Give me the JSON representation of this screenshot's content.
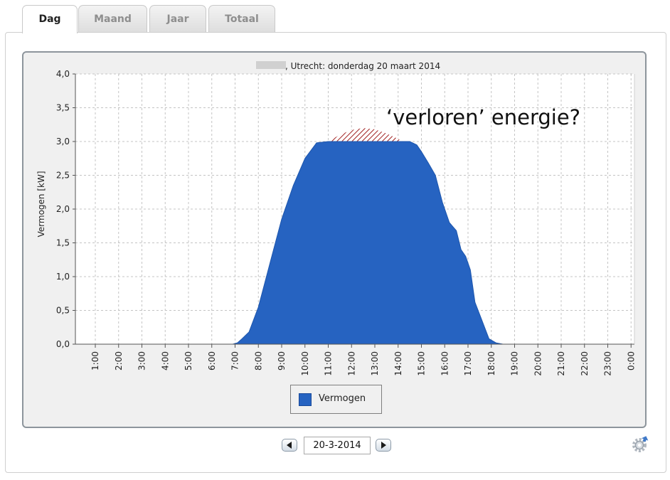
{
  "tabs": [
    {
      "label": "Dag",
      "active": true
    },
    {
      "label": "Maand",
      "active": false
    },
    {
      "label": "Jaar",
      "active": false
    },
    {
      "label": "Totaal",
      "active": false
    }
  ],
  "annotation": "‘verloren’ energie?",
  "date_nav": {
    "date_value": "20-3-2014",
    "prev_icon": "triangle-left-icon",
    "next_icon": "triangle-right-icon"
  },
  "settings_icon": "gear-icon",
  "chart_data": {
    "type": "area",
    "title": ", Utrecht: donderdag 20 maart 2014",
    "xlabel": "",
    "ylabel": "Vermogen [kW]",
    "ylim": [
      0,
      4
    ],
    "xlim": [
      0,
      24
    ],
    "grid": true,
    "legend_placement": "bottom-center",
    "y_ticks": [
      "0,0",
      "0,5",
      "1,0",
      "1,5",
      "2,0",
      "2,5",
      "3,0",
      "3,5",
      "4,0"
    ],
    "x_ticks": [
      "1:00",
      "2:00",
      "3:00",
      "4:00",
      "5:00",
      "6:00",
      "7:00",
      "8:00",
      "9:00",
      "10:00",
      "11:00",
      "12:00",
      "13:00",
      "14:00",
      "15:00",
      "16:00",
      "17:00",
      "18:00",
      "19:00",
      "20:00",
      "21:00",
      "22:00",
      "23:00",
      "0:00"
    ],
    "series": [
      {
        "name": "Vermogen",
        "color": "#2663c1",
        "x": [
          0,
          6.9,
          7.1,
          7.3,
          7.6,
          8.0,
          8.5,
          9.0,
          9.5,
          10.0,
          10.5,
          11.0,
          11.5,
          12.0,
          12.5,
          13.0,
          13.5,
          14.0,
          14.5,
          14.8,
          15.0,
          15.3,
          15.6,
          15.9,
          16.2,
          16.5,
          16.7,
          16.9,
          17.1,
          17.3,
          17.6,
          17.9,
          18.2,
          18.5,
          18.8,
          19.0,
          24
        ],
        "y": [
          0,
          0,
          0.02,
          0.08,
          0.18,
          0.55,
          1.2,
          1.85,
          2.35,
          2.75,
          2.98,
          3.0,
          3.0,
          3.0,
          3.0,
          3.0,
          3.0,
          3.0,
          3.0,
          2.95,
          2.85,
          2.68,
          2.5,
          2.1,
          1.8,
          1.68,
          1.4,
          1.3,
          1.1,
          0.62,
          0.35,
          0.08,
          0.02,
          0.0,
          0.0,
          0,
          0
        ]
      }
    ],
    "clipped_area": {
      "label": "‘verloren’ energie?",
      "x": [
        11.0,
        11.5,
        12.0,
        12.5,
        13.0,
        13.5,
        14.0,
        14.2
      ],
      "y": [
        3.0,
        3.1,
        3.17,
        3.2,
        3.18,
        3.12,
        3.04,
        3.0
      ],
      "fill": "#a02020"
    }
  }
}
